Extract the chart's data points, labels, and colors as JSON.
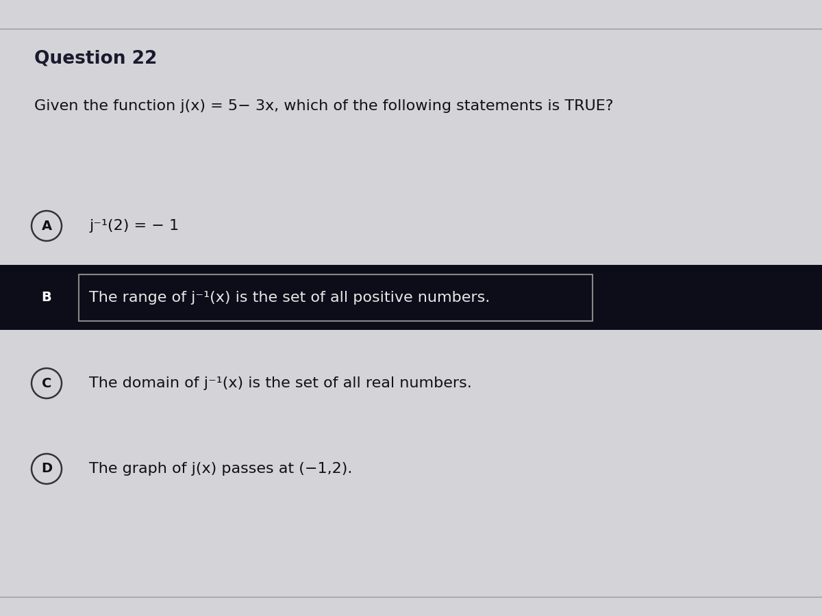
{
  "background_color": "#d4d4d8",
  "title": "Question 22",
  "question": "Given the function j(x) = 5− 3x, which of the following statements is TRUE?",
  "options": [
    {
      "label": "A",
      "text": "j⁻¹(2) = − 1",
      "selected": false,
      "highlight": false
    },
    {
      "label": "B",
      "text": "The range of j⁻¹(x) is the set of all positive numbers.",
      "selected": true,
      "highlight": true
    },
    {
      "label": "C",
      "text": "The domain of j⁻¹(x) is the set of all real numbers.",
      "selected": false,
      "highlight": false
    },
    {
      "label": "D",
      "text": "The graph of j(x) passes at (−1,2).",
      "selected": false,
      "highlight": false
    }
  ],
  "title_fontsize": 19,
  "question_fontsize": 16,
  "option_fontsize": 16,
  "label_fontsize": 14,
  "title_color": "#1a1a2e",
  "question_color": "#111111",
  "option_text_color": "#111111",
  "circle_edge_color": "#333333",
  "circle_face_color": "#d4d4d8",
  "selected_circle_face_color": "#0d0d1a",
  "selected_circle_edge_color": "#0d0d1a",
  "selected_label_color": "#ffffff",
  "highlight_box_color": "#0d0d1a",
  "highlight_text_color": "#e8e8e8",
  "highlight_inner_box_color": "#0d0d1a",
  "highlight_box_edge": "#888888",
  "top_line_color": "#999999",
  "bottom_line_color": "#999999"
}
